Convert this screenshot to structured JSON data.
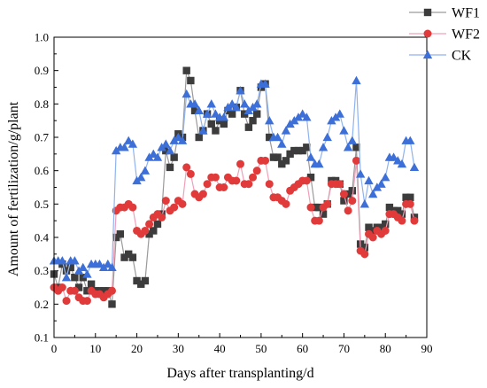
{
  "chart_data": {
    "type": "line",
    "title": "",
    "xlabel": "Days after transplanting/d",
    "ylabel": "Amount of fertilization/g/plant",
    "xlim": [
      0,
      90
    ],
    "ylim": [
      0.1,
      1.0
    ],
    "x_ticks": [
      "0",
      "10",
      "20",
      "30",
      "40",
      "50",
      "60",
      "70",
      "80",
      "90"
    ],
    "y_ticks": [
      "0.1",
      "0.2",
      "0.3",
      "0.4",
      "0.5",
      "0.6",
      "0.7",
      "0.8",
      "0.9",
      "1.0"
    ],
    "grid": false,
    "legend_position": "top-right",
    "series": [
      {
        "name": "WF1",
        "color": "#3c3c3c",
        "line_color": "#9a9a9a",
        "marker": "square",
        "x": [
          0,
          1,
          2,
          3,
          4,
          5,
          6,
          7,
          8,
          9,
          10,
          11,
          12,
          13,
          14,
          15,
          16,
          17,
          18,
          19,
          20,
          21,
          22,
          23,
          24,
          25,
          26,
          27,
          28,
          29,
          30,
          31,
          32,
          33,
          34,
          35,
          36,
          37,
          38,
          39,
          40,
          41,
          42,
          43,
          44,
          45,
          46,
          47,
          48,
          49,
          50,
          51,
          52,
          53,
          54,
          55,
          56,
          57,
          58,
          59,
          60,
          61,
          62,
          63,
          64,
          65,
          66,
          67,
          68,
          69,
          70,
          71,
          72,
          73,
          74,
          75,
          76,
          77,
          78,
          79,
          80,
          81,
          82,
          83,
          84,
          85,
          86,
          87
        ],
        "y": [
          0.29,
          0.25,
          0.32,
          0.3,
          0.31,
          0.28,
          0.25,
          0.28,
          0.24,
          0.26,
          0.24,
          0.24,
          0.24,
          0.24,
          0.2,
          0.4,
          0.41,
          0.34,
          0.35,
          0.34,
          0.27,
          0.26,
          0.27,
          0.41,
          0.42,
          0.44,
          0.47,
          0.66,
          0.61,
          0.64,
          0.71,
          0.7,
          0.9,
          0.87,
          0.78,
          0.7,
          0.72,
          0.77,
          0.74,
          0.72,
          0.75,
          0.74,
          0.78,
          0.77,
          0.79,
          0.84,
          0.77,
          0.73,
          0.75,
          0.77,
          0.85,
          0.86,
          0.7,
          0.64,
          0.64,
          0.62,
          0.63,
          0.65,
          0.66,
          0.66,
          0.66,
          0.67,
          0.58,
          0.49,
          0.49,
          0.47,
          0.5,
          0.57,
          0.57,
          0.56,
          0.51,
          0.53,
          0.54,
          0.67,
          0.38,
          0.37,
          0.43,
          0.42,
          0.43,
          0.43,
          0.44,
          0.49,
          0.48,
          0.48,
          0.47,
          0.52,
          0.52,
          0.46
        ]
      },
      {
        "name": "WF2",
        "color": "#e03a3a",
        "line_color": "#f0a0b8",
        "marker": "circle",
        "x": [
          0,
          1,
          2,
          3,
          4,
          5,
          6,
          7,
          8,
          9,
          10,
          11,
          12,
          13,
          14,
          15,
          16,
          17,
          18,
          19,
          20,
          21,
          22,
          23,
          24,
          25,
          26,
          27,
          28,
          29,
          30,
          31,
          32,
          33,
          34,
          35,
          36,
          37,
          38,
          39,
          40,
          41,
          42,
          43,
          44,
          45,
          46,
          47,
          48,
          49,
          50,
          51,
          52,
          53,
          54,
          55,
          56,
          57,
          58,
          59,
          60,
          61,
          62,
          63,
          64,
          65,
          66,
          67,
          68,
          69,
          70,
          71,
          72,
          73,
          74,
          75,
          76,
          77,
          78,
          79,
          80,
          81,
          82,
          83,
          84,
          85,
          86,
          87
        ],
        "y": [
          0.25,
          0.24,
          0.25,
          0.21,
          0.24,
          0.24,
          0.22,
          0.21,
          0.21,
          0.24,
          0.23,
          0.23,
          0.22,
          0.23,
          0.24,
          0.48,
          0.49,
          0.49,
          0.5,
          0.49,
          0.42,
          0.41,
          0.42,
          0.44,
          0.46,
          0.47,
          0.46,
          0.51,
          0.48,
          0.49,
          0.51,
          0.5,
          0.61,
          0.59,
          0.53,
          0.52,
          0.53,
          0.56,
          0.58,
          0.58,
          0.55,
          0.55,
          0.58,
          0.57,
          0.57,
          0.62,
          0.56,
          0.56,
          0.58,
          0.6,
          0.63,
          0.63,
          0.56,
          0.52,
          0.52,
          0.51,
          0.5,
          0.54,
          0.55,
          0.56,
          0.57,
          0.57,
          0.49,
          0.45,
          0.45,
          0.49,
          0.5,
          0.56,
          0.56,
          0.56,
          0.53,
          0.48,
          0.51,
          0.63,
          0.36,
          0.35,
          0.41,
          0.4,
          0.42,
          0.41,
          0.42,
          0.47,
          0.47,
          0.46,
          0.45,
          0.5,
          0.5,
          0.45
        ]
      },
      {
        "name": "CK",
        "color": "#3c6fd8",
        "line_color": "#8fb3ee",
        "marker": "triangle",
        "x": [
          0,
          1,
          2,
          3,
          4,
          5,
          6,
          7,
          8,
          9,
          10,
          11,
          12,
          13,
          14,
          15,
          16,
          17,
          18,
          19,
          20,
          21,
          22,
          23,
          24,
          25,
          26,
          27,
          28,
          29,
          30,
          31,
          32,
          33,
          34,
          35,
          36,
          37,
          38,
          39,
          40,
          41,
          42,
          43,
          44,
          45,
          46,
          47,
          48,
          49,
          50,
          51,
          52,
          53,
          54,
          55,
          56,
          57,
          58,
          59,
          60,
          61,
          62,
          63,
          64,
          65,
          66,
          67,
          68,
          69,
          70,
          71,
          72,
          73,
          74,
          75,
          76,
          77,
          78,
          79,
          80,
          81,
          82,
          83,
          84,
          85,
          86,
          87
        ],
        "y": [
          0.33,
          0.33,
          0.33,
          0.28,
          0.33,
          0.33,
          0.3,
          0.31,
          0.29,
          0.32,
          0.32,
          0.32,
          0.31,
          0.32,
          0.31,
          0.66,
          0.67,
          0.67,
          0.69,
          0.68,
          0.57,
          0.58,
          0.6,
          0.64,
          0.65,
          0.64,
          0.67,
          0.68,
          0.66,
          0.69,
          0.7,
          0.69,
          0.83,
          0.8,
          0.8,
          0.78,
          0.72,
          0.77,
          0.8,
          0.77,
          0.76,
          0.76,
          0.79,
          0.8,
          0.79,
          0.84,
          0.8,
          0.78,
          0.79,
          0.8,
          0.86,
          0.86,
          0.75,
          0.7,
          0.7,
          0.68,
          0.72,
          0.74,
          0.75,
          0.76,
          0.77,
          0.76,
          0.64,
          0.62,
          0.62,
          0.67,
          0.7,
          0.75,
          0.76,
          0.77,
          0.72,
          0.67,
          0.69,
          0.87,
          0.59,
          0.5,
          0.57,
          0.53,
          0.55,
          0.56,
          0.58,
          0.64,
          0.64,
          0.63,
          0.62,
          0.69,
          0.69,
          0.61
        ]
      }
    ]
  }
}
